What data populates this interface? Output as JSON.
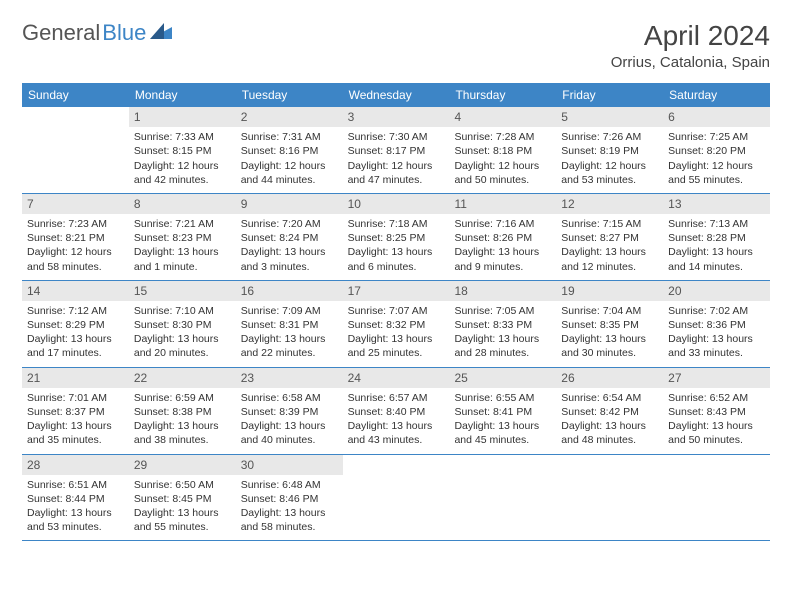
{
  "logo": {
    "text1": "General",
    "text2": "Blue"
  },
  "title": "April 2024",
  "location": "Orrius, Catalonia, Spain",
  "weekdays": [
    "Sunday",
    "Monday",
    "Tuesday",
    "Wednesday",
    "Thursday",
    "Friday",
    "Saturday"
  ],
  "colors": {
    "header_bg": "#3d85c6",
    "header_text": "#ffffff",
    "daynum_bg": "#e8e8e8",
    "text": "#333333",
    "border": "#3d85c6"
  },
  "weeks": [
    [
      {
        "empty": true
      },
      {
        "num": "1",
        "sunrise": "Sunrise: 7:33 AM",
        "sunset": "Sunset: 8:15 PM",
        "day1": "Daylight: 12 hours",
        "day2": "and 42 minutes."
      },
      {
        "num": "2",
        "sunrise": "Sunrise: 7:31 AM",
        "sunset": "Sunset: 8:16 PM",
        "day1": "Daylight: 12 hours",
        "day2": "and 44 minutes."
      },
      {
        "num": "3",
        "sunrise": "Sunrise: 7:30 AM",
        "sunset": "Sunset: 8:17 PM",
        "day1": "Daylight: 12 hours",
        "day2": "and 47 minutes."
      },
      {
        "num": "4",
        "sunrise": "Sunrise: 7:28 AM",
        "sunset": "Sunset: 8:18 PM",
        "day1": "Daylight: 12 hours",
        "day2": "and 50 minutes."
      },
      {
        "num": "5",
        "sunrise": "Sunrise: 7:26 AM",
        "sunset": "Sunset: 8:19 PM",
        "day1": "Daylight: 12 hours",
        "day2": "and 53 minutes."
      },
      {
        "num": "6",
        "sunrise": "Sunrise: 7:25 AM",
        "sunset": "Sunset: 8:20 PM",
        "day1": "Daylight: 12 hours",
        "day2": "and 55 minutes."
      }
    ],
    [
      {
        "num": "7",
        "sunrise": "Sunrise: 7:23 AM",
        "sunset": "Sunset: 8:21 PM",
        "day1": "Daylight: 12 hours",
        "day2": "and 58 minutes."
      },
      {
        "num": "8",
        "sunrise": "Sunrise: 7:21 AM",
        "sunset": "Sunset: 8:23 PM",
        "day1": "Daylight: 13 hours",
        "day2": "and 1 minute."
      },
      {
        "num": "9",
        "sunrise": "Sunrise: 7:20 AM",
        "sunset": "Sunset: 8:24 PM",
        "day1": "Daylight: 13 hours",
        "day2": "and 3 minutes."
      },
      {
        "num": "10",
        "sunrise": "Sunrise: 7:18 AM",
        "sunset": "Sunset: 8:25 PM",
        "day1": "Daylight: 13 hours",
        "day2": "and 6 minutes."
      },
      {
        "num": "11",
        "sunrise": "Sunrise: 7:16 AM",
        "sunset": "Sunset: 8:26 PM",
        "day1": "Daylight: 13 hours",
        "day2": "and 9 minutes."
      },
      {
        "num": "12",
        "sunrise": "Sunrise: 7:15 AM",
        "sunset": "Sunset: 8:27 PM",
        "day1": "Daylight: 13 hours",
        "day2": "and 12 minutes."
      },
      {
        "num": "13",
        "sunrise": "Sunrise: 7:13 AM",
        "sunset": "Sunset: 8:28 PM",
        "day1": "Daylight: 13 hours",
        "day2": "and 14 minutes."
      }
    ],
    [
      {
        "num": "14",
        "sunrise": "Sunrise: 7:12 AM",
        "sunset": "Sunset: 8:29 PM",
        "day1": "Daylight: 13 hours",
        "day2": "and 17 minutes."
      },
      {
        "num": "15",
        "sunrise": "Sunrise: 7:10 AM",
        "sunset": "Sunset: 8:30 PM",
        "day1": "Daylight: 13 hours",
        "day2": "and 20 minutes."
      },
      {
        "num": "16",
        "sunrise": "Sunrise: 7:09 AM",
        "sunset": "Sunset: 8:31 PM",
        "day1": "Daylight: 13 hours",
        "day2": "and 22 minutes."
      },
      {
        "num": "17",
        "sunrise": "Sunrise: 7:07 AM",
        "sunset": "Sunset: 8:32 PM",
        "day1": "Daylight: 13 hours",
        "day2": "and 25 minutes."
      },
      {
        "num": "18",
        "sunrise": "Sunrise: 7:05 AM",
        "sunset": "Sunset: 8:33 PM",
        "day1": "Daylight: 13 hours",
        "day2": "and 28 minutes."
      },
      {
        "num": "19",
        "sunrise": "Sunrise: 7:04 AM",
        "sunset": "Sunset: 8:35 PM",
        "day1": "Daylight: 13 hours",
        "day2": "and 30 minutes."
      },
      {
        "num": "20",
        "sunrise": "Sunrise: 7:02 AM",
        "sunset": "Sunset: 8:36 PM",
        "day1": "Daylight: 13 hours",
        "day2": "and 33 minutes."
      }
    ],
    [
      {
        "num": "21",
        "sunrise": "Sunrise: 7:01 AM",
        "sunset": "Sunset: 8:37 PM",
        "day1": "Daylight: 13 hours",
        "day2": "and 35 minutes."
      },
      {
        "num": "22",
        "sunrise": "Sunrise: 6:59 AM",
        "sunset": "Sunset: 8:38 PM",
        "day1": "Daylight: 13 hours",
        "day2": "and 38 minutes."
      },
      {
        "num": "23",
        "sunrise": "Sunrise: 6:58 AM",
        "sunset": "Sunset: 8:39 PM",
        "day1": "Daylight: 13 hours",
        "day2": "and 40 minutes."
      },
      {
        "num": "24",
        "sunrise": "Sunrise: 6:57 AM",
        "sunset": "Sunset: 8:40 PM",
        "day1": "Daylight: 13 hours",
        "day2": "and 43 minutes."
      },
      {
        "num": "25",
        "sunrise": "Sunrise: 6:55 AM",
        "sunset": "Sunset: 8:41 PM",
        "day1": "Daylight: 13 hours",
        "day2": "and 45 minutes."
      },
      {
        "num": "26",
        "sunrise": "Sunrise: 6:54 AM",
        "sunset": "Sunset: 8:42 PM",
        "day1": "Daylight: 13 hours",
        "day2": "and 48 minutes."
      },
      {
        "num": "27",
        "sunrise": "Sunrise: 6:52 AM",
        "sunset": "Sunset: 8:43 PM",
        "day1": "Daylight: 13 hours",
        "day2": "and 50 minutes."
      }
    ],
    [
      {
        "num": "28",
        "sunrise": "Sunrise: 6:51 AM",
        "sunset": "Sunset: 8:44 PM",
        "day1": "Daylight: 13 hours",
        "day2": "and 53 minutes."
      },
      {
        "num": "29",
        "sunrise": "Sunrise: 6:50 AM",
        "sunset": "Sunset: 8:45 PM",
        "day1": "Daylight: 13 hours",
        "day2": "and 55 minutes."
      },
      {
        "num": "30",
        "sunrise": "Sunrise: 6:48 AM",
        "sunset": "Sunset: 8:46 PM",
        "day1": "Daylight: 13 hours",
        "day2": "and 58 minutes."
      },
      {
        "empty": true
      },
      {
        "empty": true
      },
      {
        "empty": true
      },
      {
        "empty": true
      }
    ]
  ]
}
